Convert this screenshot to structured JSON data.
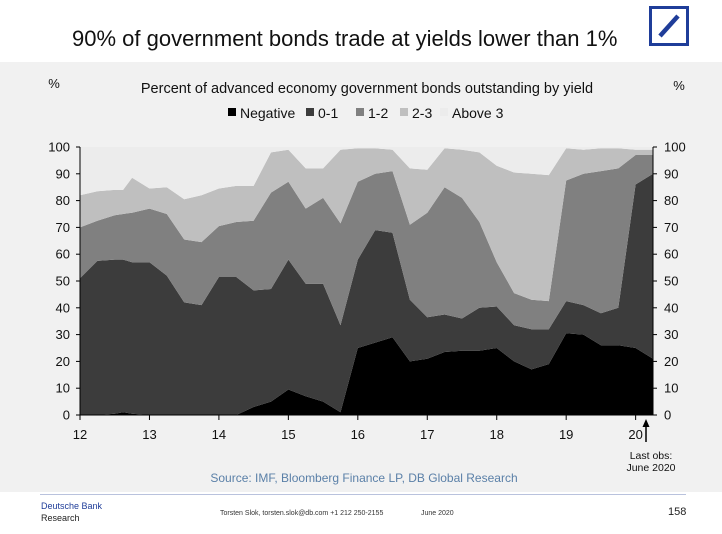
{
  "slide": {
    "title": "90% of government bonds trade at yields lower than 1%",
    "page_number": "158",
    "brand_name": "Deutsche Bank",
    "brand_sub": "Research",
    "author": "Torsten Slok, torsten.slok@db.com  +1 212 250-2155",
    "date": "June 2020",
    "logo_icon": "deutsche-bank-logo-icon",
    "brand_color": "#1f3d99"
  },
  "chart_data": {
    "type": "area",
    "stacked": true,
    "title": "Percent of advanced economy government bonds outstanding by yield",
    "ylabel_left": "%",
    "ylabel_right": "%",
    "ylim": [
      0,
      100
    ],
    "yticks": [
      0,
      10,
      20,
      30,
      40,
      50,
      60,
      70,
      80,
      90,
      100
    ],
    "x_tick_labels": [
      "12",
      "13",
      "14",
      "15",
      "16",
      "17",
      "18",
      "19",
      "20"
    ],
    "x_tick_positions": [
      12.0,
      13.0,
      14.0,
      15.0,
      16.0,
      17.0,
      18.0,
      19.0,
      20.0
    ],
    "xlim": [
      12.0,
      20.25
    ],
    "x": [
      12.0,
      12.25,
      12.5,
      12.62,
      12.75,
      13.0,
      13.25,
      13.5,
      13.75,
      14.0,
      14.25,
      14.5,
      14.75,
      15.0,
      15.25,
      15.5,
      15.75,
      16.0,
      16.25,
      16.5,
      16.75,
      17.0,
      17.25,
      17.5,
      17.75,
      18.0,
      18.25,
      18.5,
      18.75,
      19.0,
      19.25,
      19.5,
      19.75,
      20.0,
      20.25
    ],
    "legend_position": "top",
    "grid": false,
    "annotation": "Last obs:\nJune 2020",
    "source": "Source:  IMF, Bloomberg Finance LP, DB Global Research",
    "series": [
      {
        "name": "Negative",
        "color": "#000000",
        "values": [
          0,
          0,
          0.5,
          1,
          0.5,
          0,
          0,
          0,
          0,
          0,
          0,
          3,
          5,
          9.5,
          7,
          5,
          1,
          25,
          27,
          29,
          20,
          21,
          23.5,
          24,
          24,
          25,
          20,
          17,
          19,
          30.5,
          30,
          26,
          26,
          25,
          21
        ]
      },
      {
        "name": "0-1",
        "color": "#3c3c3c",
        "values": [
          51,
          57.5,
          57.5,
          57,
          56.5,
          57,
          52,
          42,
          41,
          51.5,
          51.5,
          43.5,
          42,
          48.5,
          42,
          44,
          32.5,
          33,
          42,
          39,
          23,
          15.5,
          14,
          12,
          16,
          15.5,
          13.5,
          15,
          13,
          12,
          11,
          12,
          14,
          61,
          69
        ]
      },
      {
        "name": "1-2",
        "color": "#808080",
        "values": [
          19,
          15,
          16.5,
          17,
          18.5,
          20,
          23,
          23.5,
          23.5,
          19,
          20.5,
          26,
          36,
          29,
          28,
          32,
          38,
          29,
          21,
          23,
          28,
          39,
          47.5,
          45,
          32,
          16.5,
          12,
          11,
          10.5,
          45,
          49,
          53,
          52,
          11,
          7
        ]
      },
      {
        "name": "2-3",
        "color": "#bfbfbf",
        "values": [
          12,
          11,
          9.5,
          9,
          13,
          7.5,
          10,
          15,
          17.5,
          14,
          13.5,
          13,
          15,
          12,
          15,
          11,
          27.5,
          12.5,
          9.5,
          8,
          21,
          16,
          14.5,
          18,
          26,
          36,
          45,
          47,
          47,
          12,
          9,
          8.5,
          7.5,
          2,
          2
        ]
      },
      {
        "name": "Above 3",
        "color": "#ececec",
        "values": [
          18,
          16.5,
          16,
          16,
          11.5,
          15.5,
          15,
          19.5,
          18,
          15.5,
          14.5,
          14.5,
          2,
          1,
          8,
          8,
          1,
          0.5,
          0.5,
          1,
          8,
          8.5,
          0.5,
          1,
          2,
          7,
          9.5,
          10,
          10.5,
          0.5,
          1,
          0.5,
          0.5,
          1,
          1
        ]
      }
    ]
  }
}
